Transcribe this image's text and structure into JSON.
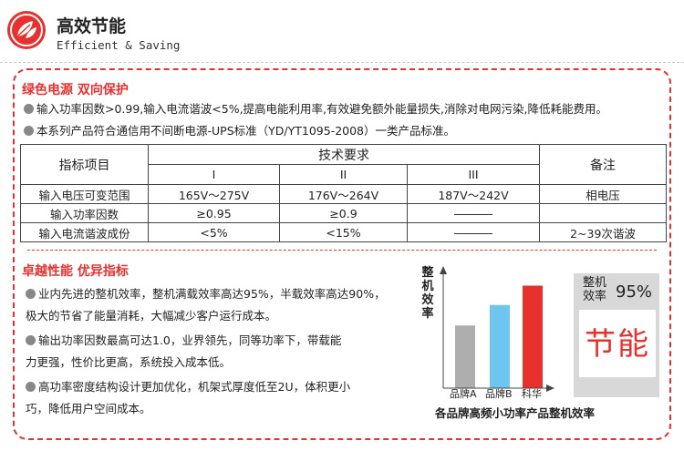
{
  "header": {
    "title": "高效节能",
    "subtitle": "Efficient & Saving"
  },
  "section1": {
    "title": "绿色电源  双向保护",
    "bullets": [
      "输入功率因数>0.99,输入电流谐波<5%,提高电能利用率,有效避免额外能量损失,消除对电网污染,降低耗能费用。",
      "本系列产品符合通信用不间断电源-UPS标准（YD/YT1095-2008）一类产品标准。"
    ]
  },
  "table": {
    "col_item": "指标项目",
    "col_req": "技术要求",
    "col_note": "备注",
    "levels": [
      "I",
      "II",
      "III"
    ],
    "rows": [
      {
        "item": "输入电压可变范围",
        "v1": "165V～275V",
        "v2": "176V～264V",
        "v3": "187V～242V",
        "note": "相电压"
      },
      {
        "item": "输入功率因数",
        "v1": "≥0.95",
        "v2": "≥0.9",
        "v3": "",
        "note": ""
      },
      {
        "item": "输入电流谐波成份",
        "v1": "<5%",
        "v2": "<15%",
        "v3": "",
        "note": "2~39次谐波"
      }
    ]
  },
  "section2": {
    "title": "卓越性能  优异指标",
    "bullets": [
      [
        "业内先进的整机效率，整机满载效率高达95%，半载效率高达90%，",
        "极大的节省了能量消耗，大幅减少客户运行成本。"
      ],
      [
        "输出功率因数最高可达1.0，业界领先，同等功率下，带载能",
        "力更强，性价比更高，系统投入成本低。"
      ],
      [
        "高功率密度结构设计更加优化，机架式厚度低至2U，体积更小",
        "巧，降低用户空间成本。"
      ]
    ]
  },
  "chart_data": {
    "type": "bar",
    "ylabel": "整机效率",
    "categories": [
      "品牌A",
      "品牌B",
      "科华"
    ],
    "values": [
      0.55,
      0.73,
      0.9
    ],
    "colors": [
      "#aeaeae",
      "#6ec6f0",
      "#e8312f"
    ],
    "title": "各品牌高频小功率产品整机效率"
  },
  "efficiency_box": {
    "label": "整机效率",
    "value": "95%",
    "big_text": "节能"
  },
  "colors": {
    "accent": "#e8312f",
    "bullet": "#888888"
  }
}
